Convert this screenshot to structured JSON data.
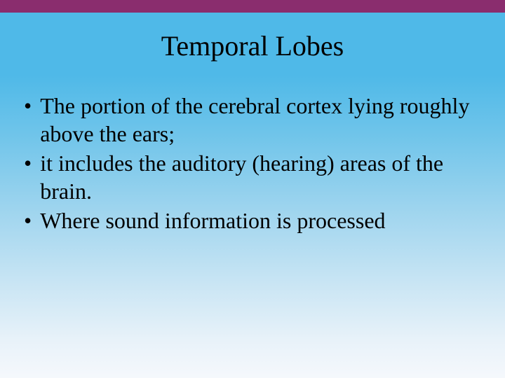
{
  "slide": {
    "title": "Temporal Lobes",
    "bullets": [
      "The portion of the cerebral cortex lying roughly above the ears;",
      "it includes the auditory (hearing) areas of the brain.",
      "Where sound information is processed"
    ],
    "colors": {
      "top_bar": "#8a2d6e",
      "gradient_top": "#4fb9e8",
      "gradient_bottom": "#f5f8fc",
      "text": "#000000"
    },
    "typography": {
      "title_fontsize": 40,
      "body_fontsize": 32,
      "font_family": "Times New Roman"
    }
  }
}
